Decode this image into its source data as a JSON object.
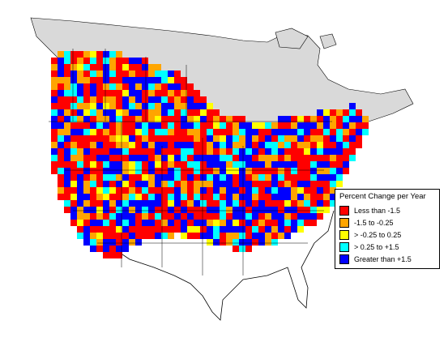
{
  "legend": {
    "title": "Percent Change per Year",
    "items": [
      {
        "label": "Less than -1.5",
        "color": "#ff0000"
      },
      {
        "label": "-1.5 to -0.25",
        "color": "#ffa500"
      },
      {
        "label": "> -0.25 to 0.25",
        "color": "#ffff00"
      },
      {
        "label": "> 0.25 to +1.5",
        "color": "#00ffff"
      },
      {
        "label": "Greater than +1.5",
        "color": "#0000ff"
      }
    ]
  },
  "colors": {
    "no_data_region": "#d9d9d9",
    "background": "#ffffff",
    "boundary": "#000000"
  }
}
